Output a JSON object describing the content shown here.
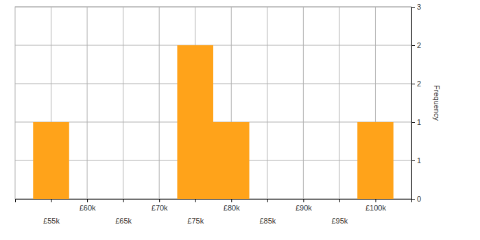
{
  "chart_data": {
    "type": "histogram",
    "y_label": "Frequency",
    "bins": [
      52500,
      57500,
      62500,
      67500,
      72500,
      77500,
      82500,
      87500,
      92500,
      97500,
      102500
    ],
    "values": [
      1,
      0,
      0,
      0,
      2,
      1,
      0,
      0,
      0,
      1
    ],
    "color": "#ffa31a",
    "xlim": [
      50000,
      105000
    ],
    "xticks": [
      {
        "value": 55000,
        "label": "£55k"
      },
      {
        "value": 60000,
        "label": "£60k"
      },
      {
        "value": 65000,
        "label": "£65k"
      },
      {
        "value": 70000,
        "label": "£70k"
      },
      {
        "value": 75000,
        "label": "£75k"
      },
      {
        "value": 80000,
        "label": "£80k"
      },
      {
        "value": 85000,
        "label": "£85k"
      },
      {
        "value": 90000,
        "label": "£90k"
      },
      {
        "value": 95000,
        "label": "£95k"
      },
      {
        "value": 100000,
        "label": "£100k"
      }
    ],
    "ylim": [
      0,
      2.5
    ],
    "yticks": [
      0,
      {
        "value": 0.5,
        "label": "1"
      },
      1,
      {
        "value": 1.5,
        "label": "2"
      },
      2,
      {
        "value": 2.5,
        "label": "3"
      }
    ],
    "grid": true
  }
}
